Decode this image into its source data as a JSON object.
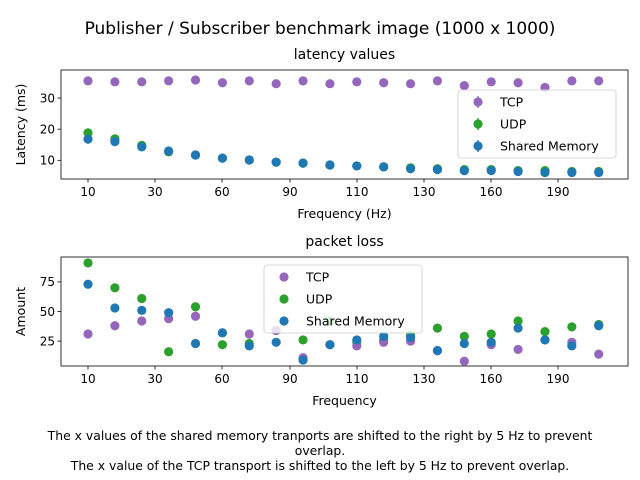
{
  "figure": {
    "title": "Publisher / Subscriber benchmark image (1000 x 1000)",
    "caption_lines": [
      "The x values of the shared memory tranports are shifted to the right by 5 Hz to prevent",
      "overlap.",
      "The x value of the TCP transport is shifted to the left by 5 Hz to prevent overlap."
    ]
  },
  "colors": {
    "TCP": "#9467bd",
    "UDP": "#2ca02c",
    "Shared Memory": "#1f77b4"
  },
  "chart_data": [
    {
      "type": "scatter",
      "title": "latency values",
      "xlabel": "Frequency (Hz)",
      "ylabel": "Latency (ms)",
      "x_ticks": [
        "10",
        "30",
        "60",
        "90",
        "110",
        "130",
        "160",
        "190"
      ],
      "y_ticks": [
        10,
        20,
        30
      ],
      "ylim": [
        4,
        39
      ],
      "grid": false,
      "legend_position": "right",
      "series_order": [
        "TCP",
        "UDP",
        "Shared Memory"
      ],
      "legend_order": [
        "TCP",
        "UDP",
        "Shared Memory"
      ],
      "legend_marker": "errorbar",
      "series": [
        {
          "name": "TCP",
          "values": [
            35.5,
            35.2,
            35.2,
            35.5,
            35.8,
            34.9,
            35.5,
            34.6,
            35.5,
            34.6,
            35.2,
            34.9,
            34.6,
            35.5,
            34.0,
            35.2,
            34.9,
            33.4,
            35.5,
            35.5
          ]
        },
        {
          "name": "UDP",
          "values": [
            18.8,
            16.9,
            14.8,
            12.7,
            11.7,
            10.7,
            10.1,
            9.4,
            9.1,
            8.5,
            8.2,
            7.9,
            7.6,
            7.3,
            7.0,
            7.0,
            6.7,
            6.7,
            6.4,
            6.4
          ]
        },
        {
          "name": "Shared Memory",
          "values": [
            16.8,
            16.0,
            14.3,
            13.0,
            11.7,
            10.7,
            10.1,
            9.4,
            9.1,
            8.5,
            8.2,
            7.9,
            7.3,
            7.0,
            6.7,
            6.7,
            6.4,
            6.1,
            6.1,
            6.1
          ]
        }
      ]
    },
    {
      "type": "scatter",
      "title": "packet loss",
      "xlabel": "Frequency",
      "ylabel": "Amount",
      "x_ticks": [
        "10",
        "30",
        "60",
        "90",
        "110",
        "130",
        "160",
        "190"
      ],
      "y_ticks": [
        25,
        50,
        75
      ],
      "ylim": [
        4,
        96
      ],
      "grid": false,
      "legend_position": "top-center",
      "series_order": [
        "UDP",
        "TCP",
        "Shared Memory"
      ],
      "legend_order": [
        "TCP",
        "UDP",
        "Shared Memory"
      ],
      "legend_marker": "dot",
      "series": [
        {
          "name": "TCP",
          "values": [
            31,
            38,
            42,
            44,
            46,
            32,
            31,
            34,
            11,
            22,
            21,
            24,
            25,
            17,
            8,
            22,
            18,
            26,
            24,
            14
          ]
        },
        {
          "name": "UDP",
          "values": [
            91,
            70,
            61,
            16,
            54,
            22,
            23,
            34,
            26,
            42,
            24,
            26,
            30,
            36,
            29,
            31,
            42,
            33,
            37,
            39
          ]
        },
        {
          "name": "Shared Memory",
          "values": [
            73,
            53,
            51,
            49,
            23,
            32,
            21,
            24,
            9,
            22,
            26,
            29,
            28,
            17,
            23,
            24,
            36,
            26,
            21,
            38
          ]
        }
      ]
    }
  ]
}
